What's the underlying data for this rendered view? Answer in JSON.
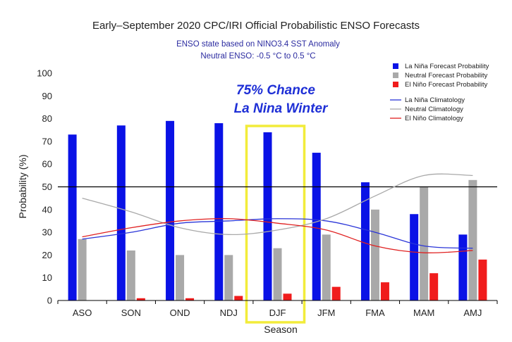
{
  "colors": {
    "lanina": "#0a12e6",
    "neutral": "#a9a9a9",
    "elnino": "#f01c1c",
    "lanina_clim": "#2a35d8",
    "neutral_clim": "#a9a9a9",
    "elnino_clim": "#e02020",
    "highlight": "#f2ec3a",
    "annotation": "#1e2fd6",
    "subtitle": "#2b2ba0"
  },
  "chart_data": {
    "type": "bar",
    "title": "Early–September 2020 CPC/IRI Official Probabilistic ENSO Forecasts",
    "subtitle_lines": [
      "ENSO state based on NINO3.4 SST Anomaly",
      "Neutral ENSO: -0.5 °C to 0.5 °C"
    ],
    "xlabel": "Season",
    "ylabel": "Probability (%)",
    "ylim": [
      0,
      100
    ],
    "yticks": [
      "0",
      "10",
      "20",
      "30",
      "40",
      "50",
      "60",
      "70",
      "80",
      "90",
      "100"
    ],
    "reference_line": 50,
    "categories": [
      "ASO",
      "SON",
      "OND",
      "NDJ",
      "DJF",
      "JFM",
      "FMA",
      "MAM",
      "AMJ"
    ],
    "series": [
      {
        "name": "La Niña Forecast Probability",
        "type": "bar",
        "color_key": "lanina",
        "values": [
          73,
          77,
          79,
          78,
          74,
          65,
          52,
          38,
          29
        ]
      },
      {
        "name": "Neutral Forecast Probability",
        "type": "bar",
        "color_key": "neutral",
        "values": [
          27,
          22,
          20,
          20,
          23,
          29,
          40,
          50,
          53
        ]
      },
      {
        "name": "El Niño Forecast Probability",
        "type": "bar",
        "color_key": "elnino",
        "values": [
          0,
          1,
          1,
          2,
          3,
          6,
          8,
          12,
          18
        ]
      },
      {
        "name": "La Niña Climatology",
        "type": "line",
        "color_key": "lanina_clim",
        "values": [
          27,
          30,
          34,
          35,
          36,
          35,
          30,
          24,
          23
        ]
      },
      {
        "name": "Neutral Climatology",
        "type": "line",
        "color_key": "neutral_clim",
        "values": [
          45,
          39,
          32,
          29,
          31,
          36,
          46,
          55,
          55
        ]
      },
      {
        "name": "El Niño Climatology",
        "type": "line",
        "color_key": "elnino_clim",
        "values": [
          28,
          32,
          35,
          36,
          34,
          31,
          24,
          21,
          22
        ]
      }
    ],
    "legend_placement": "top-right",
    "highlight_category": "DJF",
    "annotation": [
      "75% Chance",
      "La Nina Winter"
    ],
    "grid": false
  }
}
